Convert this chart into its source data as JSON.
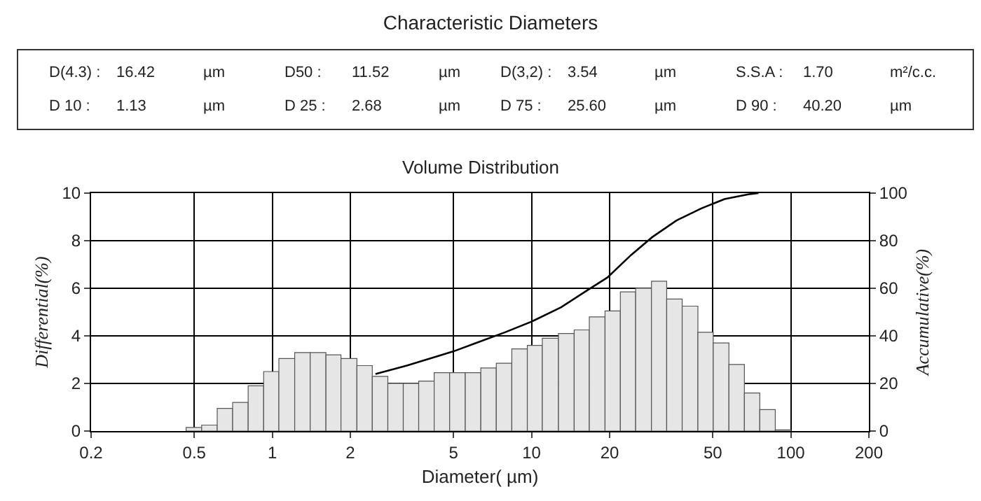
{
  "chart_data": [
    {
      "type": "other",
      "title": "Characteristic Diameters",
      "annotations": [
        "D(4.3) :",
        "16.42",
        "µm",
        "D50 :",
        "11.52",
        "µm",
        "D(3,2) :",
        "3.54",
        "µm",
        "S.S.A :",
        "1.70",
        "m²/c.c.",
        "D 10 :",
        "1.13",
        "µm",
        "D 25 :",
        "2.68",
        "µm",
        "D 75 :",
        "25.60",
        "µm",
        "D 90 :",
        "40.20",
        "µm"
      ]
    },
    {
      "type": "histogram",
      "title": "Volume Distribution",
      "xlabel": "Diameter( µm)",
      "ylabel": "Differential(%)",
      "y2label": "Accumulative(%)",
      "bins": [
        0.465,
        0.534,
        0.613,
        0.703,
        0.807,
        0.926,
        1.06,
        1.22,
        1.4,
        1.61,
        1.84,
        2.12,
        2.43,
        2.79,
        3.2,
        3.67,
        4.21,
        4.83,
        5.55,
        6.37,
        7.31,
        8.39,
        9.63,
        11.0,
        12.7,
        14.6,
        16.7,
        19.2,
        22.0,
        25.2,
        29.0,
        33.2,
        38.1,
        43.8,
        50.2,
        57.7,
        66.2,
        75.9,
        87.1,
        100
      ],
      "values": [
        0.15,
        0.25,
        0.95,
        1.2,
        1.9,
        2.5,
        3.05,
        3.3,
        3.3,
        3.2,
        3.05,
        2.75,
        2.3,
        2.0,
        2.0,
        2.1,
        2.45,
        2.45,
        2.45,
        2.65,
        2.85,
        3.45,
        3.6,
        3.9,
        4.1,
        4.25,
        4.8,
        5.05,
        5.85,
        6.0,
        6.3,
        5.55,
        5.25,
        4.15,
        3.7,
        2.8,
        1.6,
        0.9,
        0.05
      ],
      "color": "#e6e6e6",
      "series": [
        {
          "type": "line",
          "axis": "y2",
          "color": "#000000",
          "x": [
            2.5,
            3.3,
            5,
            6.1,
            7.9,
            10,
            13,
            16.6,
            19.6,
            24.2,
            29.2,
            36.2,
            45,
            55.5,
            68.5,
            75
          ],
          "values": [
            24,
            27.5,
            33.5,
            37,
            41.5,
            46,
            52,
            59.5,
            64.5,
            74,
            81.5,
            88.5,
            93.5,
            97.5,
            99.5,
            100
          ]
        }
      ],
      "log": "x",
      "xlim": [
        0.2,
        200
      ],
      "xticks": [
        0.2,
        0.5,
        1,
        2,
        5,
        10,
        20,
        50,
        100,
        200
      ],
      "ylim": [
        0,
        10
      ],
      "yticks": [
        0,
        2,
        4,
        6,
        8,
        10
      ],
      "y2lim": [
        0,
        100
      ],
      "y2ticks": [
        0,
        20,
        40,
        60,
        80,
        100
      ],
      "grid": true,
      "marker": "none",
      "line_style": "solid"
    }
  ]
}
